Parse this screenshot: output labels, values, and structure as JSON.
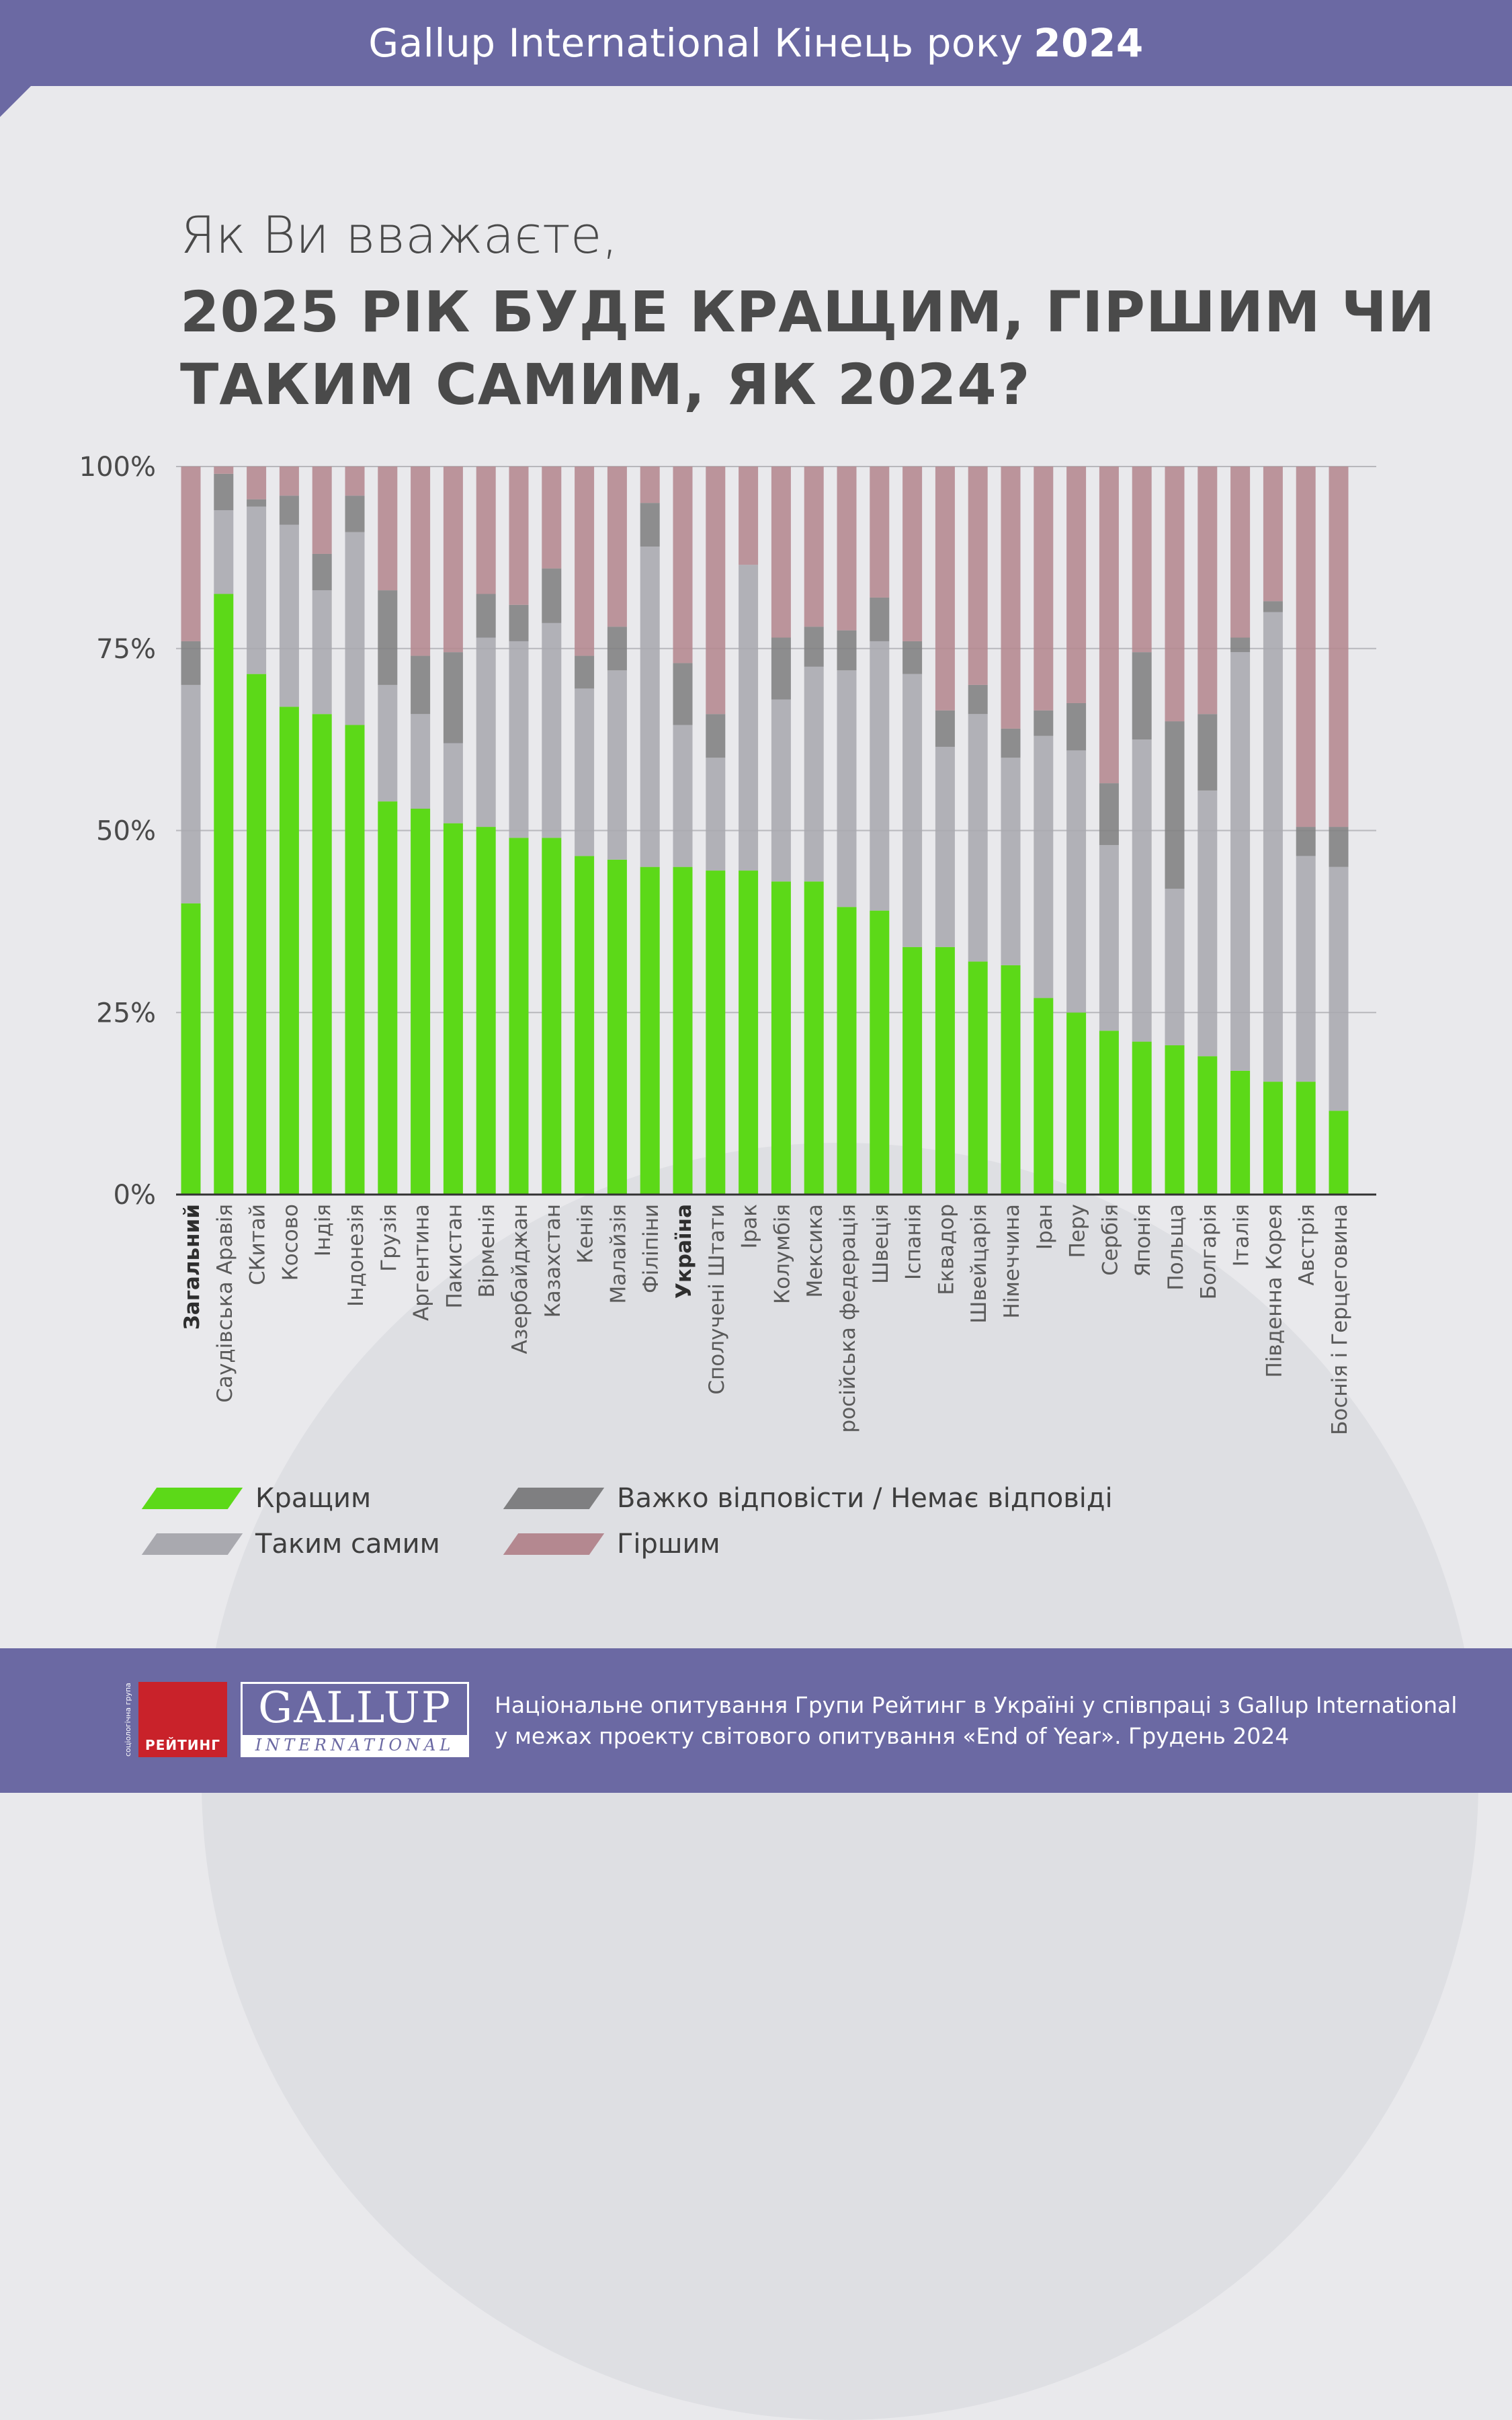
{
  "header": {
    "title": "Gallup International Кінець року",
    "year": "2024"
  },
  "question": {
    "line1": "Як Ви вважаєте,",
    "line2": "2025 РІК БУДЕ КРАЩИМ, ГІРШИМ ЧИ",
    "line3": "ТАКИМ САМИМ, ЯК 2024?"
  },
  "colors": {
    "better": "#5cd918",
    "same": "#a9a9af",
    "hard": "#7f7f81",
    "worse": "#b48890",
    "grid": "#b8b8bc",
    "axis": "#333333"
  },
  "chart_data": {
    "type": "bar",
    "stacked": true,
    "yticks": [
      "100%",
      "75%",
      "50%",
      "25%",
      "0%"
    ],
    "ylim": [
      0,
      100
    ],
    "grid": true,
    "bold_categories": [
      "Загальний",
      "Україна"
    ],
    "categories": [
      "Загальний",
      "Саудівська Аравія",
      "СКитай",
      "Косово",
      "Індія",
      "Індонезія",
      "Грузія",
      "Аргентина",
      "Пакистан",
      "Вірменія",
      "Азербайджан",
      "Казахстан",
      "Кенія",
      "Малайзія",
      "Філіпіни",
      "Україна",
      "Сполучені Штати",
      "Ірак",
      "Колумбія",
      "Мексика",
      "російська федерація",
      "Швеція",
      "Іспанія",
      "Еквадор",
      "Швейцарія",
      "Німеччина",
      "Іран",
      "Перу",
      "Сербія",
      "Японія",
      "Польща",
      "Болгарія",
      "Італія",
      "Південна Корея",
      "Австрія",
      "Боснія і Герцеговина"
    ],
    "series": [
      {
        "name": "Кращим",
        "values": [
          40,
          82.5,
          71.5,
          67,
          66,
          64.5,
          54,
          53,
          51,
          50.5,
          49,
          49,
          46.5,
          46,
          45,
          45,
          44.5,
          44.5,
          43,
          43,
          39.5,
          39,
          34,
          34,
          32,
          31.5,
          27,
          25,
          22.5,
          21,
          20.5,
          19,
          17,
          15.5,
          15.5,
          11.5
        ]
      },
      {
        "name": "Таким самим",
        "values": [
          30,
          11.5,
          23,
          25,
          17,
          26.5,
          16,
          13,
          11,
          26,
          27,
          29.5,
          23,
          26,
          44,
          19.5,
          15.5,
          42,
          25,
          29.5,
          32.5,
          37,
          37.5,
          27.5,
          34,
          28.5,
          36,
          36,
          25.5,
          41.5,
          21.5,
          36.5,
          57.5,
          64.5,
          31,
          33.5
        ]
      },
      {
        "name": "Важко відповісти / Немає відповіді",
        "values": [
          6,
          5,
          1,
          4,
          5,
          5,
          13,
          8,
          12.5,
          6,
          5,
          7.5,
          4.5,
          6,
          6,
          8.5,
          6,
          0,
          8.5,
          5.5,
          5.5,
          6,
          4.5,
          5,
          4,
          4,
          3.5,
          6.5,
          8.5,
          12,
          23,
          10.5,
          2,
          1.5,
          4,
          5.5
        ]
      },
      {
        "name": "Гіршим",
        "values": [
          24,
          1,
          4.5,
          4,
          12,
          4,
          17,
          26,
          25.5,
          17.5,
          19,
          14,
          26,
          22,
          5,
          27,
          34,
          13.5,
          23.5,
          22,
          22.5,
          18,
          24,
          33.5,
          30,
          36,
          33.5,
          32.5,
          43.5,
          25.5,
          35,
          34,
          23.5,
          18.5,
          49.5,
          49.5
        ]
      }
    ]
  },
  "legend": {
    "better": "Кращим",
    "same": "Таким самим",
    "hard": "Важко відповісти / Немає відповіді",
    "worse": "Гіршим"
  },
  "footer": {
    "reyting_tagline": "соціологічна група",
    "reyting_label": "РЕЙТИНГ",
    "gallup_big": "GALLUP",
    "gallup_small": "INTERNATIONAL",
    "line1": "Національне опитування Групи Рейтинг в Україні у співпраці з Gallup International",
    "line2": "у межах проекту світового опитування «End of Year». Грудень 2024"
  }
}
